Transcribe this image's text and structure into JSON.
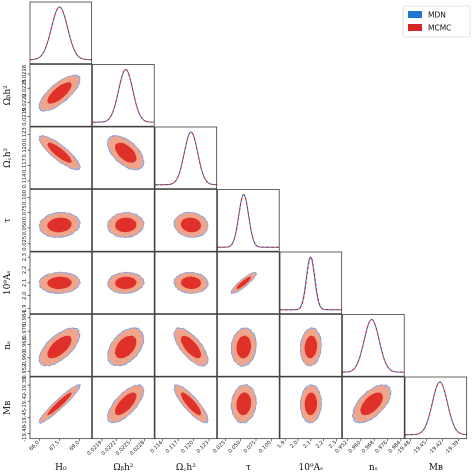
{
  "chart_data": {
    "type": "corner",
    "legend_position": "top-right",
    "series": [
      {
        "name": "MDN",
        "color": "#1f77d4",
        "line_style": "solid"
      },
      {
        "name": "MCMC",
        "color": "#d62728",
        "line_style": "dashed"
      }
    ],
    "parameters": [
      {
        "key": "H0",
        "label": "H₀",
        "ticks": [
          "66.0",
          "67.5",
          "69.0"
        ],
        "tick_values": [
          66.0,
          67.5,
          69.0
        ],
        "range": [
          65.3,
          69.9
        ],
        "mean": 67.5,
        "std": 0.6
      },
      {
        "key": "ombh2",
        "label": "Ωᵦh²",
        "ticks": [
          "0.0219",
          "0.0222",
          "0.0225",
          "0.0228"
        ],
        "tick_values": [
          0.0219,
          0.0222,
          0.0225,
          0.0228
        ],
        "range": [
          0.0217,
          0.023
        ],
        "mean": 0.0224,
        "std": 0.00015
      },
      {
        "key": "omch2",
        "label": "Ω꜀h²",
        "ticks": [
          "0.114",
          "0.117",
          "0.120",
          "0.123"
        ],
        "tick_values": [
          0.114,
          0.117,
          0.12,
          0.123
        ],
        "range": [
          0.1125,
          0.1245
        ],
        "mean": 0.1195,
        "std": 0.0013
      },
      {
        "key": "tau",
        "label": "τ",
        "ticks": [
          "0.025",
          "0.050",
          "0.075",
          "0.100"
        ],
        "tick_values": [
          0.025,
          0.05,
          0.075,
          0.1
        ],
        "range": [
          0.012,
          0.113
        ],
        "mean": 0.055,
        "std": 0.008
      },
      {
        "key": "As",
        "label": "10⁹Aₛ",
        "ticks": [
          "1.9",
          "2.0",
          "2.1",
          "2.2",
          "2.3"
        ],
        "tick_values": [
          1.9,
          2.0,
          2.1,
          2.2,
          2.3
        ],
        "range": [
          1.86,
          2.34
        ],
        "mean": 2.1,
        "std": 0.032
      },
      {
        "key": "ns",
        "label": "nₛ",
        "ticks": [
          "0.952",
          "0.960",
          "0.968",
          "0.976",
          "0.984"
        ],
        "tick_values": [
          0.952,
          0.96,
          0.968,
          0.976,
          0.984
        ],
        "range": [
          0.949,
          0.986
        ],
        "mean": 0.9665,
        "std": 0.0045
      },
      {
        "key": "MB",
        "label": "Mʙ",
        "ticks": [
          "-19.48",
          "-19.45",
          "-19.42",
          "-19.39"
        ],
        "tick_values": [
          -19.48,
          -19.45,
          -19.42,
          -19.39
        ],
        "range": [
          -19.49,
          -19.375
        ],
        "mean": -19.425,
        "std": 0.014
      }
    ],
    "correlations": {
      "1-0": 0.75,
      "2-0": -0.85,
      "2-1": -0.55,
      "3-0": 0.1,
      "3-1": 0.05,
      "3-2": -0.1,
      "4-0": 0.05,
      "4-1": 0.05,
      "4-2": -0.05,
      "4-3": 0.9,
      "5-0": 0.65,
      "5-1": 0.45,
      "5-2": -0.7,
      "5-3": 0.1,
      "5-4": 0.1,
      "6-0": 0.95,
      "6-1": 0.7,
      "6-2": -0.85,
      "6-3": 0.1,
      "6-4": 0.05,
      "6-5": 0.6
    },
    "marginal_shift": {
      "H0": 0.0,
      "ombh2": 0.0,
      "omch2": 0.0,
      "tau": -0.002,
      "As": -0.006,
      "ns": 0.0,
      "MB": 0.0
    },
    "colors": {
      "inner_contour": "#e0302a",
      "outer_contour": "#eea58b",
      "contour_edge": "#7da3e6",
      "frame": "#222222"
    }
  }
}
